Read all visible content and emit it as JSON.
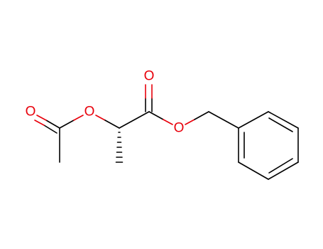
{
  "atoms": [
    "O",
    "O",
    "O",
    "O"
  ]
}
